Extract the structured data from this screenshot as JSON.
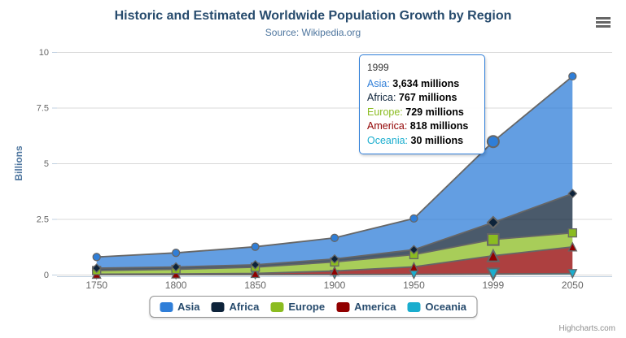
{
  "header": {
    "title": "Historic and Estimated Worldwide Population Growth by Region",
    "subtitle": "Source: Wikipedia.org"
  },
  "credit": "Highcharts.com",
  "icons": {
    "menu": "hamburger-menu-icon"
  },
  "chart_data": {
    "type": "area",
    "stacking": "normal",
    "categories": [
      "1750",
      "1800",
      "1850",
      "1900",
      "1950",
      "1999",
      "2050"
    ],
    "series": [
      {
        "name": "Asia",
        "color": "#2f7ed8",
        "marker": "circle",
        "values": [
          502,
          635,
          809,
          947,
          1402,
          3634,
          5268
        ]
      },
      {
        "name": "Africa",
        "color": "#0d233a",
        "marker": "diamond",
        "values": [
          106,
          107,
          111,
          133,
          221,
          767,
          1766
        ]
      },
      {
        "name": "Europe",
        "color": "#8bbc21",
        "marker": "square",
        "values": [
          163,
          203,
          276,
          408,
          547,
          729,
          628
        ]
      },
      {
        "name": "America",
        "color": "#910000",
        "marker": "triangle",
        "values": [
          18,
          31,
          54,
          156,
          339,
          818,
          1201
        ]
      },
      {
        "name": "Oceania",
        "color": "#1aadce",
        "marker": "triangle-down",
        "values": [
          2,
          2,
          2,
          6,
          13,
          30,
          46
        ]
      }
    ],
    "values_unit": "millions",
    "ylabel": "Billions",
    "yticks": [
      0,
      2.5,
      5,
      7.5,
      10
    ],
    "ylim": [
      0,
      10
    ],
    "unit_divisor": 1000,
    "fill_opacity": 0.75,
    "line_color": "#666666",
    "grid_color": "#d8d8d8",
    "axis_color": "#c0d0e0",
    "label_color": "#666666",
    "ytitle_color": "#4d759e",
    "hover_index": 5,
    "legend_position": "bottom",
    "grid": "horizontal"
  },
  "tooltip": {
    "header": "1999",
    "rows": [
      {
        "label": "Asia",
        "value": "3,634 millions",
        "color": "#2f7ed8"
      },
      {
        "label": "Africa",
        "value": "767 millions",
        "color": "#0d233a"
      },
      {
        "label": "Europe",
        "value": "729 millions",
        "color": "#8bbc21"
      },
      {
        "label": "America",
        "value": "818 millions",
        "color": "#910000"
      },
      {
        "label": "Oceania",
        "value": "30 millions",
        "color": "#1aadce"
      }
    ]
  },
  "legend": {
    "items": [
      {
        "label": "Asia",
        "color": "#2f7ed8"
      },
      {
        "label": "Africa",
        "color": "#0d233a"
      },
      {
        "label": "Europe",
        "color": "#8bbc21"
      },
      {
        "label": "America",
        "color": "#910000"
      },
      {
        "label": "Oceania",
        "color": "#1aadce"
      }
    ]
  }
}
